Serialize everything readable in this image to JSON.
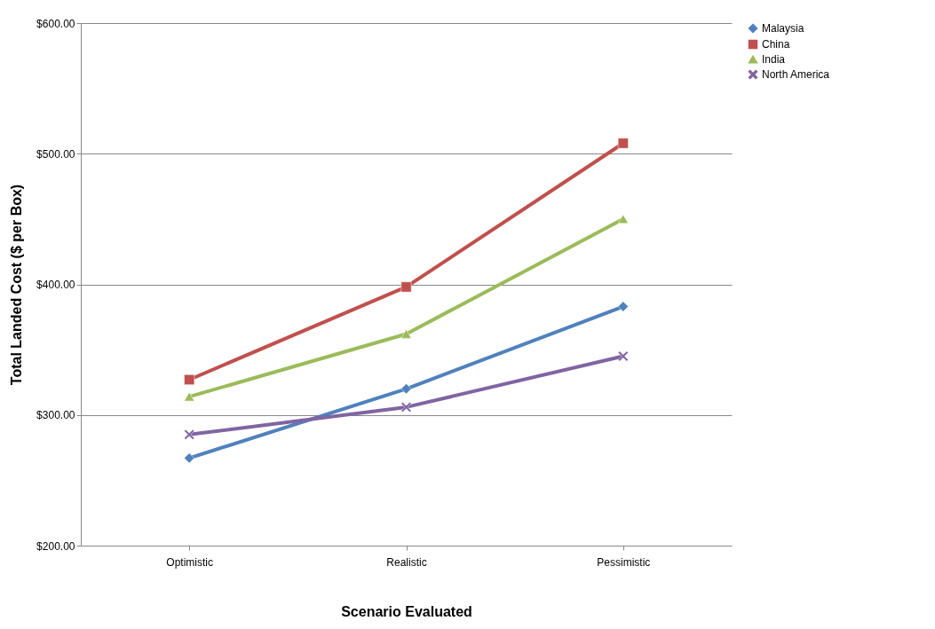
{
  "chart_data": {
    "type": "line",
    "xlabel": "Scenario Evaluated",
    "ylabel": "Total Landed Cost ($ per Box)",
    "categories": [
      "Optimistic",
      "Realistic",
      "Pessimistic"
    ],
    "series": [
      {
        "name": "Malaysia",
        "color": "#4f81bd",
        "marker": "diamond",
        "values": [
          267,
          320,
          383
        ]
      },
      {
        "name": "China",
        "color": "#c0504d",
        "marker": "square",
        "values": [
          327,
          398,
          508
        ]
      },
      {
        "name": "India",
        "color": "#9bbb59",
        "marker": "triangle",
        "values": [
          314,
          362,
          450
        ]
      },
      {
        "name": "North America",
        "color": "#8064a2",
        "marker": "cross",
        "values": [
          285,
          306,
          345
        ]
      }
    ],
    "ylim": [
      200,
      600
    ],
    "yticks": [
      {
        "value": 200,
        "label": "$200.00"
      },
      {
        "value": 300,
        "label": "$300.00"
      },
      {
        "value": 400,
        "label": "$400.00"
      },
      {
        "value": 500,
        "label": "$500.00"
      },
      {
        "value": 600,
        "label": "$600.00"
      }
    ],
    "grid": "y",
    "legend": "right",
    "line_style": "solid"
  }
}
